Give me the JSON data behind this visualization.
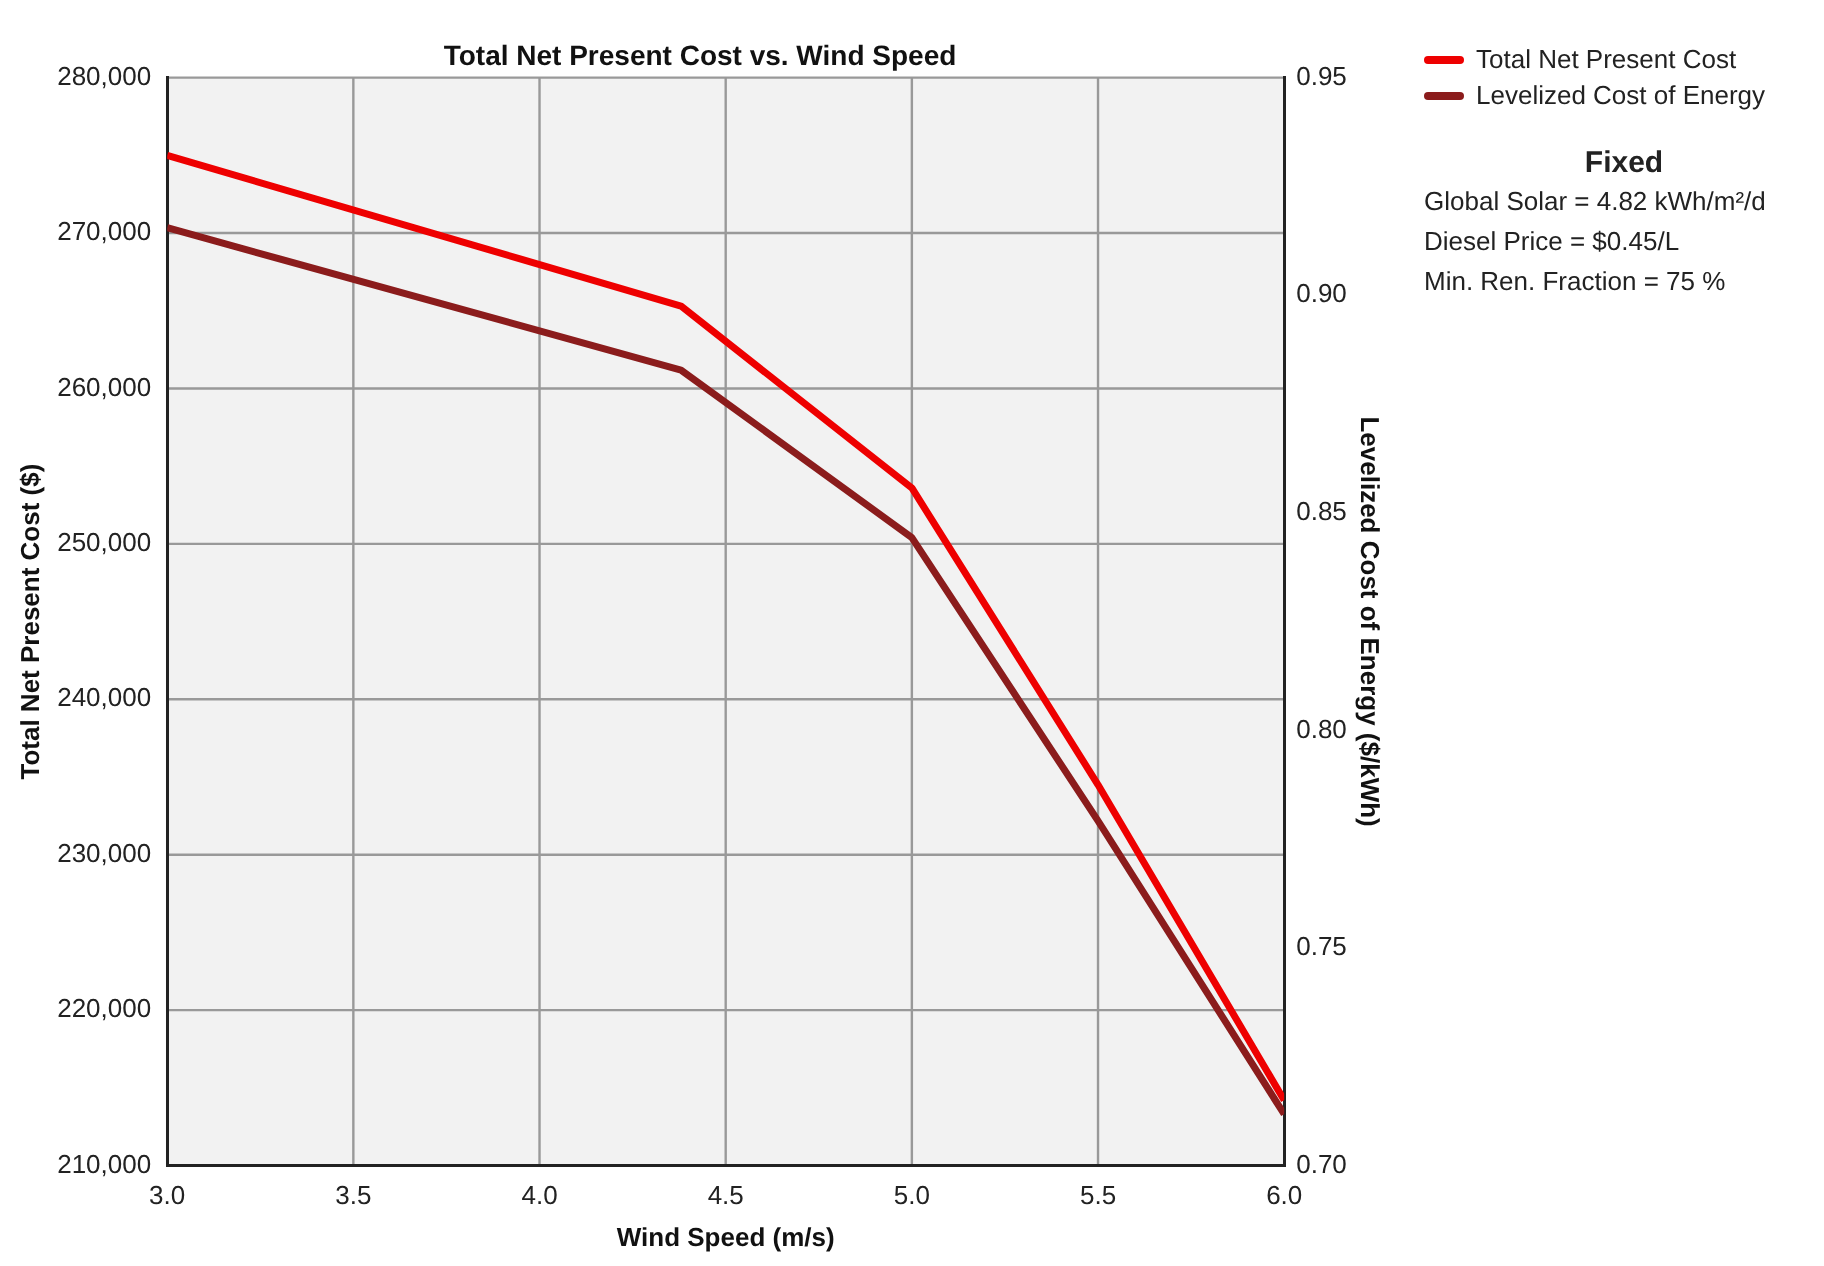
{
  "chart_data": {
    "type": "line",
    "title": "Total Net Present Cost vs. Wind Speed",
    "xlabel": "Wind Speed (m/s)",
    "ylabel": "Total Net Present Cost ($)",
    "y2label": "Levelized Cost of Energy ($/kWh)",
    "x": [
      3.0,
      4.38,
      5.0,
      5.5,
      6.0
    ],
    "series": [
      {
        "name": "Total Net Present Cost",
        "color": "#ee0000",
        "values": [
          275000,
          265300,
          253600,
          234500,
          214200
        ]
      },
      {
        "name": "Levelized Cost of Energy",
        "color": "#8b1c1c",
        "axis": "y2",
        "values": [
          0.9155,
          0.8828,
          0.8443,
          0.7792,
          0.7118
        ]
      }
    ],
    "xlim": [
      3.0,
      6.0
    ],
    "xticks": [
      {
        "value": 3.0,
        "label": "3.0"
      },
      3.5,
      {
        "value": 4.0,
        "label": "4.0"
      },
      4.5,
      {
        "value": 5.0,
        "label": "5.0"
      },
      5.5,
      {
        "value": 6.0,
        "label": "6.0"
      }
    ],
    "ylim": [
      210000,
      280000
    ],
    "yticks": [
      {
        "value": 210000,
        "label": "210,000"
      },
      {
        "value": 220000,
        "label": "220,000"
      },
      {
        "value": 230000,
        "label": "230,000"
      },
      {
        "value": 240000,
        "label": "240,000"
      },
      {
        "value": 250000,
        "label": "250,000"
      },
      {
        "value": 260000,
        "label": "260,000"
      },
      {
        "value": 270000,
        "label": "270,000"
      },
      {
        "value": 280000,
        "label": "280,000"
      }
    ],
    "y2lim": [
      0.7,
      0.95
    ],
    "y2ticks": [
      {
        "value": 0.7,
        "label": "0.70"
      },
      0.75,
      {
        "value": 0.8,
        "label": "0.80"
      },
      0.85,
      {
        "value": 0.9,
        "label": "0.90"
      },
      0.95
    ],
    "grid": true,
    "legend": "top right",
    "marker": "none",
    "line_style": "solid",
    "annotations": [
      "Fixed",
      "Global Solar = 4.82 kWh/m²/d",
      "Diesel Price = $0.45/L",
      "Min. Ren. Fraction = 75 %"
    ]
  }
}
